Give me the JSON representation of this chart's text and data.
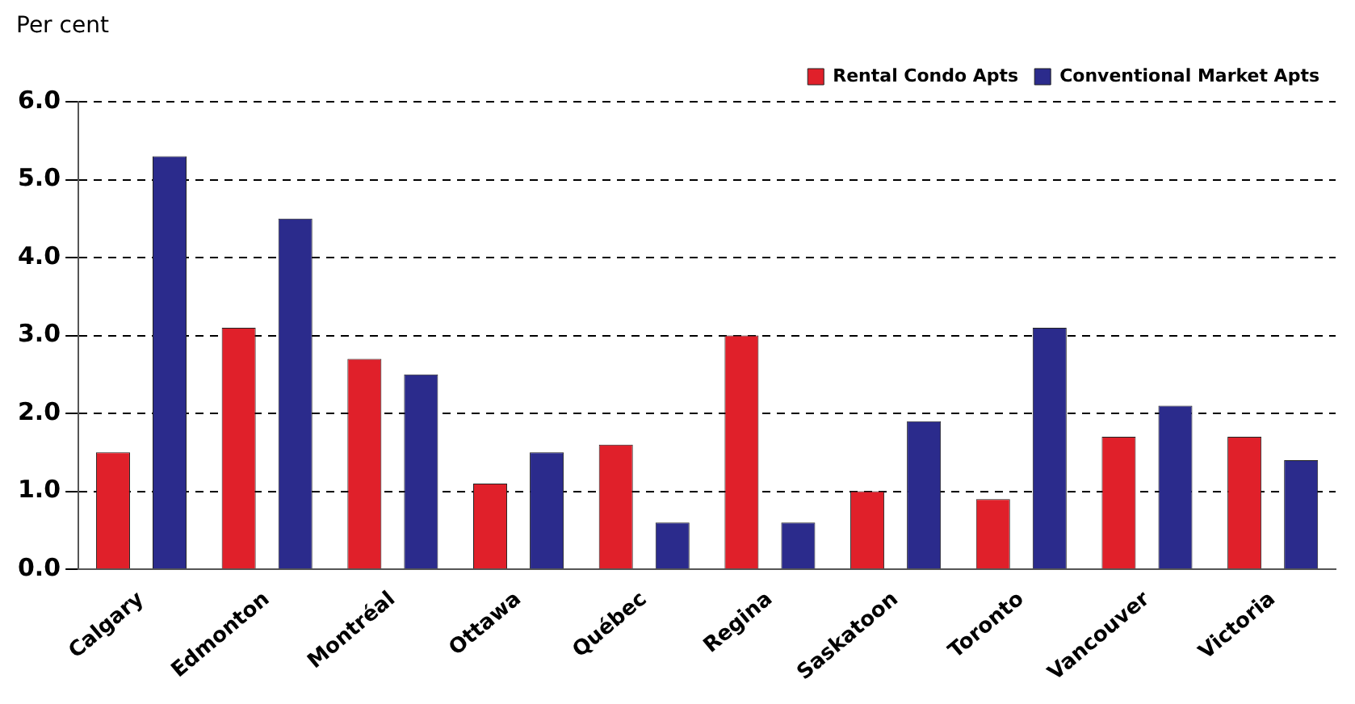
{
  "chart_data": {
    "type": "bar",
    "ylabel": "Per cent",
    "categories": [
      "Calgary",
      "Edmonton",
      "Montréal",
      "Ottawa",
      "Québec",
      "Regina",
      "Saskatoon",
      "Toronto",
      "Vancouver",
      "Victoria"
    ],
    "series": [
      {
        "name": "Rental Condo Apts",
        "color": "#e0202a",
        "values": [
          1.5,
          3.1,
          2.7,
          1.1,
          1.6,
          3.0,
          1.0,
          0.9,
          1.7,
          1.7
        ]
      },
      {
        "name": "Conventional Market Apts",
        "color": "#2b2b8c",
        "values": [
          5.3,
          4.5,
          2.5,
          1.5,
          0.6,
          0.6,
          1.9,
          3.1,
          2.1,
          1.4
        ]
      }
    ],
    "ylim": [
      0,
      6
    ],
    "yticks": [
      {
        "value": 0,
        "label": "0.0"
      },
      {
        "value": 1,
        "label": "1.0"
      },
      {
        "value": 2,
        "label": "2.0"
      },
      {
        "value": 3,
        "label": "3.0"
      },
      {
        "value": 4,
        "label": "4.0"
      },
      {
        "value": 5,
        "label": "5.0"
      },
      {
        "value": 6,
        "label": "6.0"
      }
    ],
    "grid": "y",
    "legend": "top right"
  }
}
